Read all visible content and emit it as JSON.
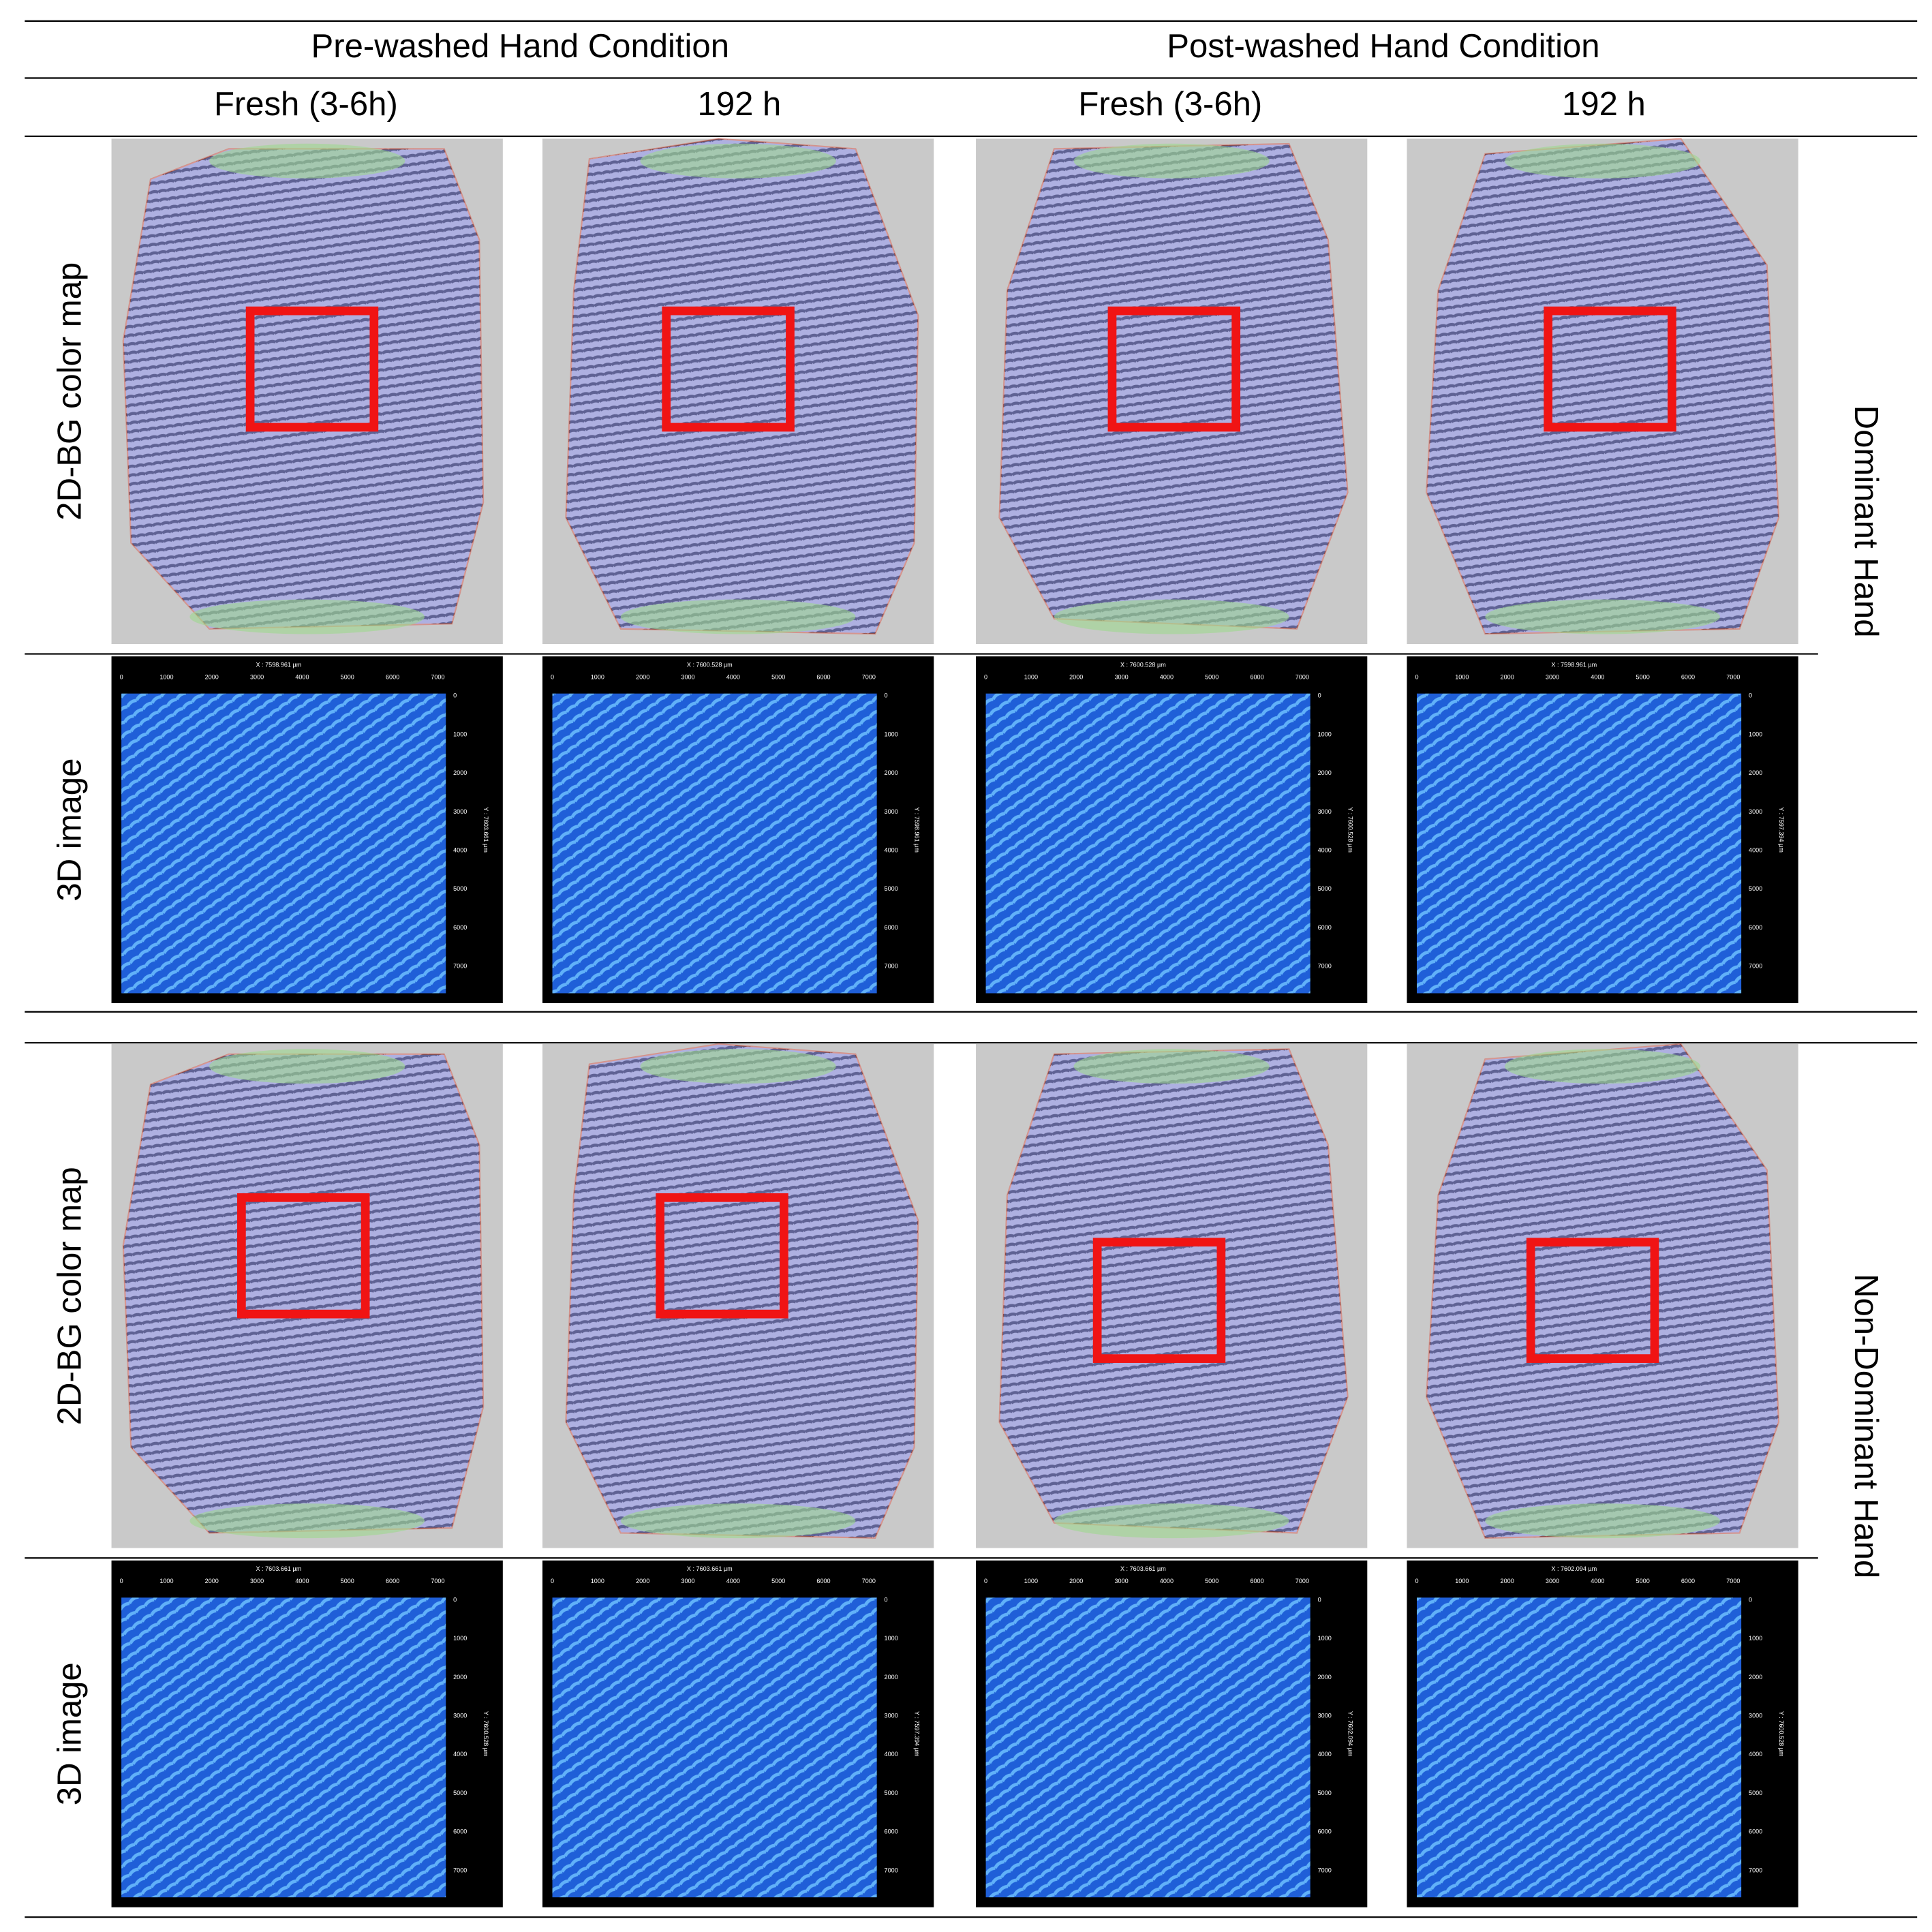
{
  "header": {
    "groups": [
      "Pre-washed Hand Condition",
      "Post-washed Hand Condition"
    ],
    "columns": [
      "Fresh (3-6h)",
      "192 h",
      "Fresh (3-6h)",
      "192 h"
    ]
  },
  "sections": [
    {
      "hand": "Dominant Hand",
      "rows": [
        "2D-BG color map",
        "3D image"
      ],
      "scans": [
        {
          "x_label": "X : 7598.961 µm",
          "y_label": "Y : 7603.661 µm"
        },
        {
          "x_label": "X : 7600.528 µm",
          "y_label": "Y : 7598.961 µm"
        },
        {
          "x_label": "X : 7600.528 µm",
          "y_label": "Y : 7600.528 µm"
        },
        {
          "x_label": "X : 7598.961 µm",
          "y_label": "Y : 7597.394 µm"
        }
      ]
    },
    {
      "hand": "Non-Dominant Hand",
      "rows": [
        "2D-BG color map",
        "3D image"
      ],
      "scans": [
        {
          "x_label": "X : 7603.661 µm",
          "y_label": "Y : 7600.528 µm"
        },
        {
          "x_label": "X : 7603.661 µm",
          "y_label": "Y : 7597.394 µm"
        },
        {
          "x_label": "X : 7603.661 µm",
          "y_label": "Y : 7602.094 µm"
        },
        {
          "x_label": "X : 7602.094 µm",
          "y_label": "Y : 7600.528 µm"
        }
      ]
    }
  ],
  "axis_ticks": {
    "x": [
      0,
      1000,
      2000,
      3000,
      4000,
      5000,
      6000,
      7000
    ],
    "y": [
      0,
      1000,
      2000,
      3000,
      4000,
      5000,
      6000,
      7000
    ]
  }
}
